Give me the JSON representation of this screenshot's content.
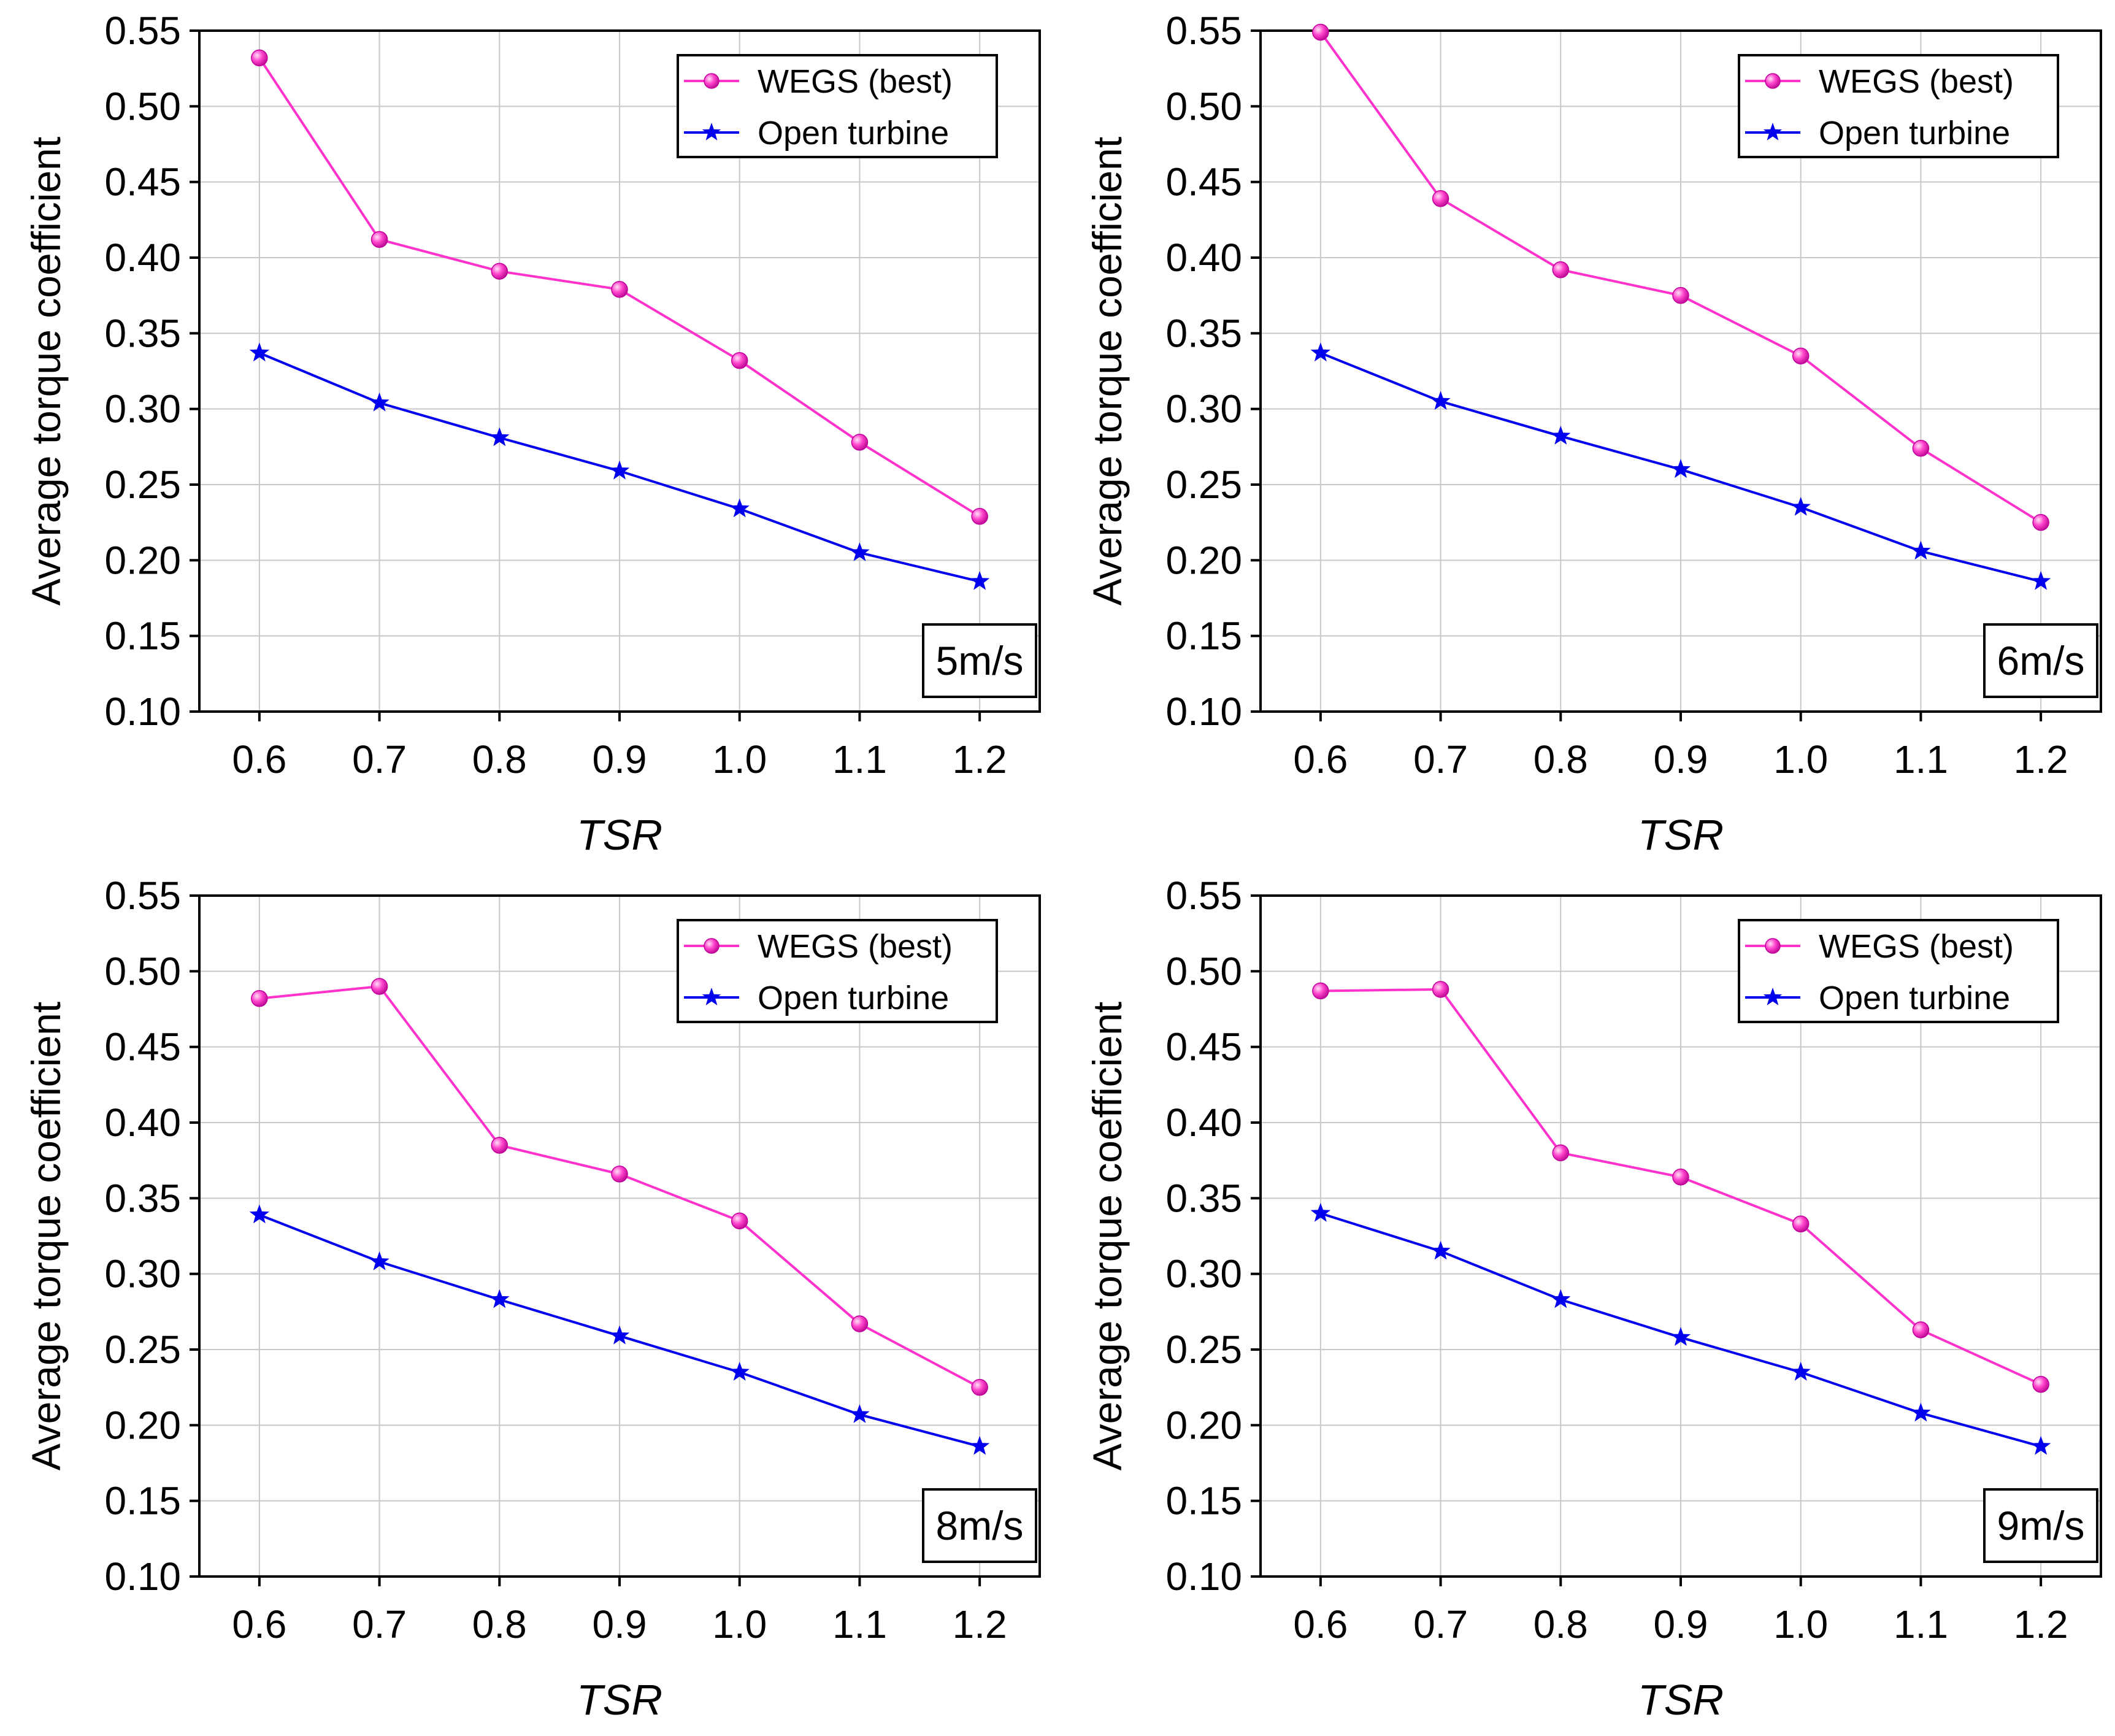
{
  "chart_data": [
    {
      "type": "line",
      "panel_label": "5m/s",
      "xlabel": "TSR",
      "ylabel": "Average torque coefficient",
      "x": [
        0.6,
        0.7,
        0.8,
        0.9,
        1.0,
        1.1,
        1.2
      ],
      "x_tick_labels": [
        "0.6",
        "0.7",
        "0.8",
        "0.9",
        "1.0",
        "1.1",
        "1.2"
      ],
      "ylim": [
        0.1,
        0.55
      ],
      "y_tick_labels": [
        "0.10",
        "0.15",
        "0.20",
        "0.25",
        "0.30",
        "0.35",
        "0.40",
        "0.45",
        "0.50",
        "0.55"
      ],
      "grid": true,
      "legend_position": "top-right",
      "series": [
        {
          "name": "WEGS (best)",
          "color": "#ff33cc",
          "marker": "sphere",
          "values": [
            0.532,
            0.412,
            0.391,
            0.379,
            0.332,
            0.278,
            0.229
          ]
        },
        {
          "name": "Open turbine",
          "color": "#0000ee",
          "marker": "star",
          "values": [
            0.337,
            0.304,
            0.281,
            0.259,
            0.234,
            0.205,
            0.186
          ]
        }
      ]
    },
    {
      "type": "line",
      "panel_label": "6m/s",
      "xlabel": "TSR",
      "ylabel": "Average torque coefficient",
      "x": [
        0.6,
        0.7,
        0.8,
        0.9,
        1.0,
        1.1,
        1.2
      ],
      "x_tick_labels": [
        "0.6",
        "0.7",
        "0.8",
        "0.9",
        "1.0",
        "1.1",
        "1.2"
      ],
      "ylim": [
        0.1,
        0.55
      ],
      "y_tick_labels": [
        "0.10",
        "0.15",
        "0.20",
        "0.25",
        "0.30",
        "0.35",
        "0.40",
        "0.45",
        "0.50",
        "0.55"
      ],
      "grid": true,
      "legend_position": "top-right",
      "series": [
        {
          "name": "WEGS (best)",
          "color": "#ff33cc",
          "marker": "sphere",
          "values": [
            0.549,
            0.439,
            0.392,
            0.375,
            0.335,
            0.274,
            0.225
          ]
        },
        {
          "name": "Open turbine",
          "color": "#0000ee",
          "marker": "star",
          "values": [
            0.337,
            0.305,
            0.282,
            0.26,
            0.235,
            0.206,
            0.186
          ]
        }
      ]
    },
    {
      "type": "line",
      "panel_label": "8m/s",
      "xlabel": "TSR",
      "ylabel": "Average torque coefficient",
      "x": [
        0.6,
        0.7,
        0.8,
        0.9,
        1.0,
        1.1,
        1.2
      ],
      "x_tick_labels": [
        "0.6",
        "0.7",
        "0.8",
        "0.9",
        "1.0",
        "1.1",
        "1.2"
      ],
      "ylim": [
        0.1,
        0.55
      ],
      "y_tick_labels": [
        "0.10",
        "0.15",
        "0.20",
        "0.25",
        "0.30",
        "0.35",
        "0.40",
        "0.45",
        "0.50",
        "0.55"
      ],
      "grid": true,
      "legend_position": "top-right",
      "series": [
        {
          "name": "WEGS (best)",
          "color": "#ff33cc",
          "marker": "sphere",
          "values": [
            0.482,
            0.49,
            0.385,
            0.366,
            0.335,
            0.267,
            0.225
          ]
        },
        {
          "name": "Open turbine",
          "color": "#0000ee",
          "marker": "star",
          "values": [
            0.339,
            0.308,
            0.283,
            0.259,
            0.235,
            0.207,
            0.186
          ]
        }
      ]
    },
    {
      "type": "line",
      "panel_label": "9m/s",
      "xlabel": "TSR",
      "ylabel": "Average torque coefficient",
      "x": [
        0.6,
        0.7,
        0.8,
        0.9,
        1.0,
        1.1,
        1.2
      ],
      "x_tick_labels": [
        "0.6",
        "0.7",
        "0.8",
        "0.9",
        "1.0",
        "1.1",
        "1.2"
      ],
      "ylim": [
        0.1,
        0.55
      ],
      "y_tick_labels": [
        "0.10",
        "0.15",
        "0.20",
        "0.25",
        "0.30",
        "0.35",
        "0.40",
        "0.45",
        "0.50",
        "0.55"
      ],
      "grid": true,
      "legend_position": "top-right",
      "series": [
        {
          "name": "WEGS (best)",
          "color": "#ff33cc",
          "marker": "sphere",
          "values": [
            0.487,
            0.488,
            0.38,
            0.364,
            0.333,
            0.263,
            0.227
          ]
        },
        {
          "name": "Open turbine",
          "color": "#0000ee",
          "marker": "star",
          "values": [
            0.34,
            0.315,
            0.283,
            0.258,
            0.235,
            0.208,
            0.186
          ]
        }
      ]
    }
  ]
}
